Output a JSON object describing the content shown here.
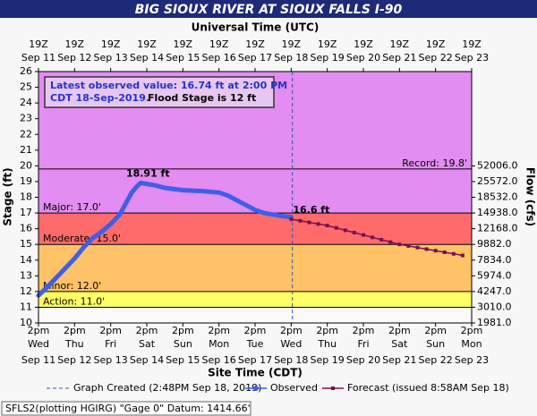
{
  "chart_data": {
    "type": "line",
    "title": "BIG SIOUX RIVER AT SIOUX FALLS I-90",
    "top_axis_label": "Universal Time (UTC)",
    "x_label": "Site Time (CDT)",
    "y_label": "Stage (ft)",
    "y2_label": "Flow (cfs)",
    "xlim": [
      "2019-09-11T14:00",
      "2019-09-23T14:00"
    ],
    "xticks": [
      {
        "value": "2019-09-11T14:00",
        "label": "2pm",
        "weekday": "Wed",
        "date": "Sep 11",
        "utc": "19Z",
        "utc_date": "Sep 11"
      },
      {
        "value": "2019-09-12T14:00",
        "label": "2pm",
        "weekday": "Thu",
        "date": "Sep 12",
        "utc": "19Z",
        "utc_date": "Sep 12"
      },
      {
        "value": "2019-09-13T14:00",
        "label": "2pm",
        "weekday": "Fri",
        "date": "Sep 13",
        "utc": "19Z",
        "utc_date": "Sep 13"
      },
      {
        "value": "2019-09-14T14:00",
        "label": "2pm",
        "weekday": "Sat",
        "date": "Sep 14",
        "utc": "19Z",
        "utc_date": "Sep 14"
      },
      {
        "value": "2019-09-15T14:00",
        "label": "2pm",
        "weekday": "Sun",
        "date": "Sep 15",
        "utc": "19Z",
        "utc_date": "Sep 15"
      },
      {
        "value": "2019-09-16T14:00",
        "label": "2pm",
        "weekday": "Mon",
        "date": "Sep 16",
        "utc": "19Z",
        "utc_date": "Sep 16"
      },
      {
        "value": "2019-09-17T14:00",
        "label": "2pm",
        "weekday": "Tue",
        "date": "Sep 17",
        "utc": "19Z",
        "utc_date": "Sep 17"
      },
      {
        "value": "2019-09-18T14:00",
        "label": "2pm",
        "weekday": "Wed",
        "date": "Sep 18",
        "utc": "19Z",
        "utc_date": "Sep 18"
      },
      {
        "value": "2019-09-19T14:00",
        "label": "2pm",
        "weekday": "Thu",
        "date": "Sep 19",
        "utc": "19Z",
        "utc_date": "Sep 19"
      },
      {
        "value": "2019-09-20T14:00",
        "label": "2pm",
        "weekday": "Fri",
        "date": "Sep 20",
        "utc": "19Z",
        "utc_date": "Sep 20"
      },
      {
        "value": "2019-09-21T14:00",
        "label": "2pm",
        "weekday": "Sat",
        "date": "Sep 21",
        "utc": "19Z",
        "utc_date": "Sep 21"
      },
      {
        "value": "2019-09-22T14:00",
        "label": "2pm",
        "weekday": "Sun",
        "date": "Sep 22",
        "utc": "19Z",
        "utc_date": "Sep 22"
      },
      {
        "value": "2019-09-23T14:00",
        "label": "2pm",
        "weekday": "Mon",
        "date": "Sep 23",
        "utc": "19Z",
        "utc_date": "Sep 23"
      }
    ],
    "ylim": [
      10,
      26
    ],
    "yticks": [
      10,
      11,
      12,
      13,
      14,
      15,
      16,
      17,
      18,
      19,
      20,
      21,
      22,
      23,
      24,
      25,
      26
    ],
    "flow_ticks": [
      {
        "stage": 20,
        "label": "52006.0"
      },
      {
        "stage": 19,
        "label": "25572.0"
      },
      {
        "stage": 18,
        "label": "18532.0"
      },
      {
        "stage": 17,
        "label": "14938.0"
      },
      {
        "stage": 16,
        "label": "12168.0"
      },
      {
        "stage": 15,
        "label": "9882.0"
      },
      {
        "stage": 14,
        "label": "7834.0"
      },
      {
        "stage": 13,
        "label": "5974.0"
      },
      {
        "stage": 12,
        "label": "4247.0"
      },
      {
        "stage": 11,
        "label": "3010.0"
      },
      {
        "stage": 10,
        "label": "1981.0"
      }
    ],
    "thresholds": [
      {
        "label": "Action: 11.0'",
        "value": 11.0,
        "band_color": "#ffff66",
        "label_position": "left"
      },
      {
        "label": "Minor: 12.0'",
        "value": 12.0,
        "band_color": "#ffc266",
        "label_position": "left"
      },
      {
        "label": "Moderate: 15.0'",
        "value": 15.0,
        "band_color": "#ff6b6b",
        "label_position": "left"
      },
      {
        "label": "Major: 17.0'",
        "value": 17.0,
        "band_color": "#e38cf2",
        "label_position": "left"
      },
      {
        "label": "Record: 19.8'",
        "value": 19.8,
        "band_color": "#e38cf2",
        "label_position": "right"
      }
    ],
    "below_color": "#fafafa",
    "created": "2019-09-18T14:48",
    "created_label": "Graph Created (2:48PM Sep 18, 2019)",
    "note_lines": [
      "Latest observed value: 16.74 ft at 2:00 PM",
      "CDT 18-Sep-2019.",
      "Flood Stage is 12 ft"
    ],
    "series": [
      {
        "name": "Observed",
        "color": "#3f5fe8",
        "marker": "circle",
        "x": [
          "2019-09-11T14:00",
          "2019-09-11T20:00",
          "2019-09-12T02:00",
          "2019-09-12T08:00",
          "2019-09-12T14:00",
          "2019-09-12T20:00",
          "2019-09-13T02:00",
          "2019-09-13T08:00",
          "2019-09-13T14:00",
          "2019-09-13T20:00",
          "2019-09-14T00:00",
          "2019-09-14T04:00",
          "2019-09-14T08:00",
          "2019-09-14T10:00",
          "2019-09-14T14:00",
          "2019-09-14T20:00",
          "2019-09-15T02:00",
          "2019-09-15T14:00",
          "2019-09-16T02:00",
          "2019-09-16T14:00",
          "2019-09-16T20:00",
          "2019-09-17T02:00",
          "2019-09-17T08:00",
          "2019-09-17T14:00",
          "2019-09-17T20:00",
          "2019-09-18T02:00",
          "2019-09-18T08:00",
          "2019-09-18T14:00"
        ],
        "values": [
          11.75,
          12.3,
          12.9,
          13.5,
          14.1,
          14.8,
          15.4,
          15.8,
          16.3,
          16.9,
          17.6,
          18.3,
          18.75,
          18.91,
          18.85,
          18.75,
          18.6,
          18.45,
          18.4,
          18.3,
          18.1,
          17.8,
          17.5,
          17.2,
          17.0,
          16.9,
          16.8,
          16.74
        ],
        "value_labels": [
          null,
          null,
          null,
          null,
          null,
          null,
          null,
          null,
          null,
          null,
          null,
          null,
          null,
          "18.91 ft",
          null,
          null,
          null,
          null,
          null,
          null,
          null,
          null,
          null,
          null,
          null,
          null,
          null,
          null
        ]
      },
      {
        "name": "Forecast (issued 8:58AM Sep 18)",
        "color": "#7a1052",
        "marker": "square",
        "x": [
          "2019-09-18T14:00",
          "2019-09-18T20:00",
          "2019-09-19T02:00",
          "2019-09-19T08:00",
          "2019-09-19T14:00",
          "2019-09-19T20:00",
          "2019-09-20T02:00",
          "2019-09-20T08:00",
          "2019-09-20T14:00",
          "2019-09-20T20:00",
          "2019-09-21T02:00",
          "2019-09-21T08:00",
          "2019-09-21T14:00",
          "2019-09-21T20:00",
          "2019-09-22T02:00",
          "2019-09-22T08:00",
          "2019-09-22T14:00",
          "2019-09-22T20:00",
          "2019-09-23T02:00",
          "2019-09-23T08:00"
        ],
        "values": [
          16.6,
          16.5,
          16.4,
          16.3,
          16.2,
          16.05,
          15.9,
          15.75,
          15.6,
          15.45,
          15.3,
          15.15,
          15.0,
          14.9,
          14.8,
          14.7,
          14.6,
          14.5,
          14.4,
          14.3
        ],
        "value_labels": [
          "16.6 ft",
          null,
          null,
          null,
          null,
          null,
          null,
          null,
          null,
          null,
          null,
          null,
          null,
          null,
          null,
          null,
          null,
          null,
          null,
          null
        ]
      }
    ],
    "footer": "SFLS2(plotting HGIRG) \"Gage 0\" Datum: 1414.66'"
  }
}
